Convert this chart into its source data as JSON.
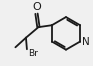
{
  "bg_color": "#f0f0f0",
  "line_color": "#1a1a1a",
  "line_width": 1.3,
  "text_color": "#1a1a1a",
  "O_label": "O",
  "N_label": "N",
  "Br_label": "Br",
  "font_size": 6.5,
  "figsize": [
    0.93,
    0.66
  ],
  "dpi": 100
}
